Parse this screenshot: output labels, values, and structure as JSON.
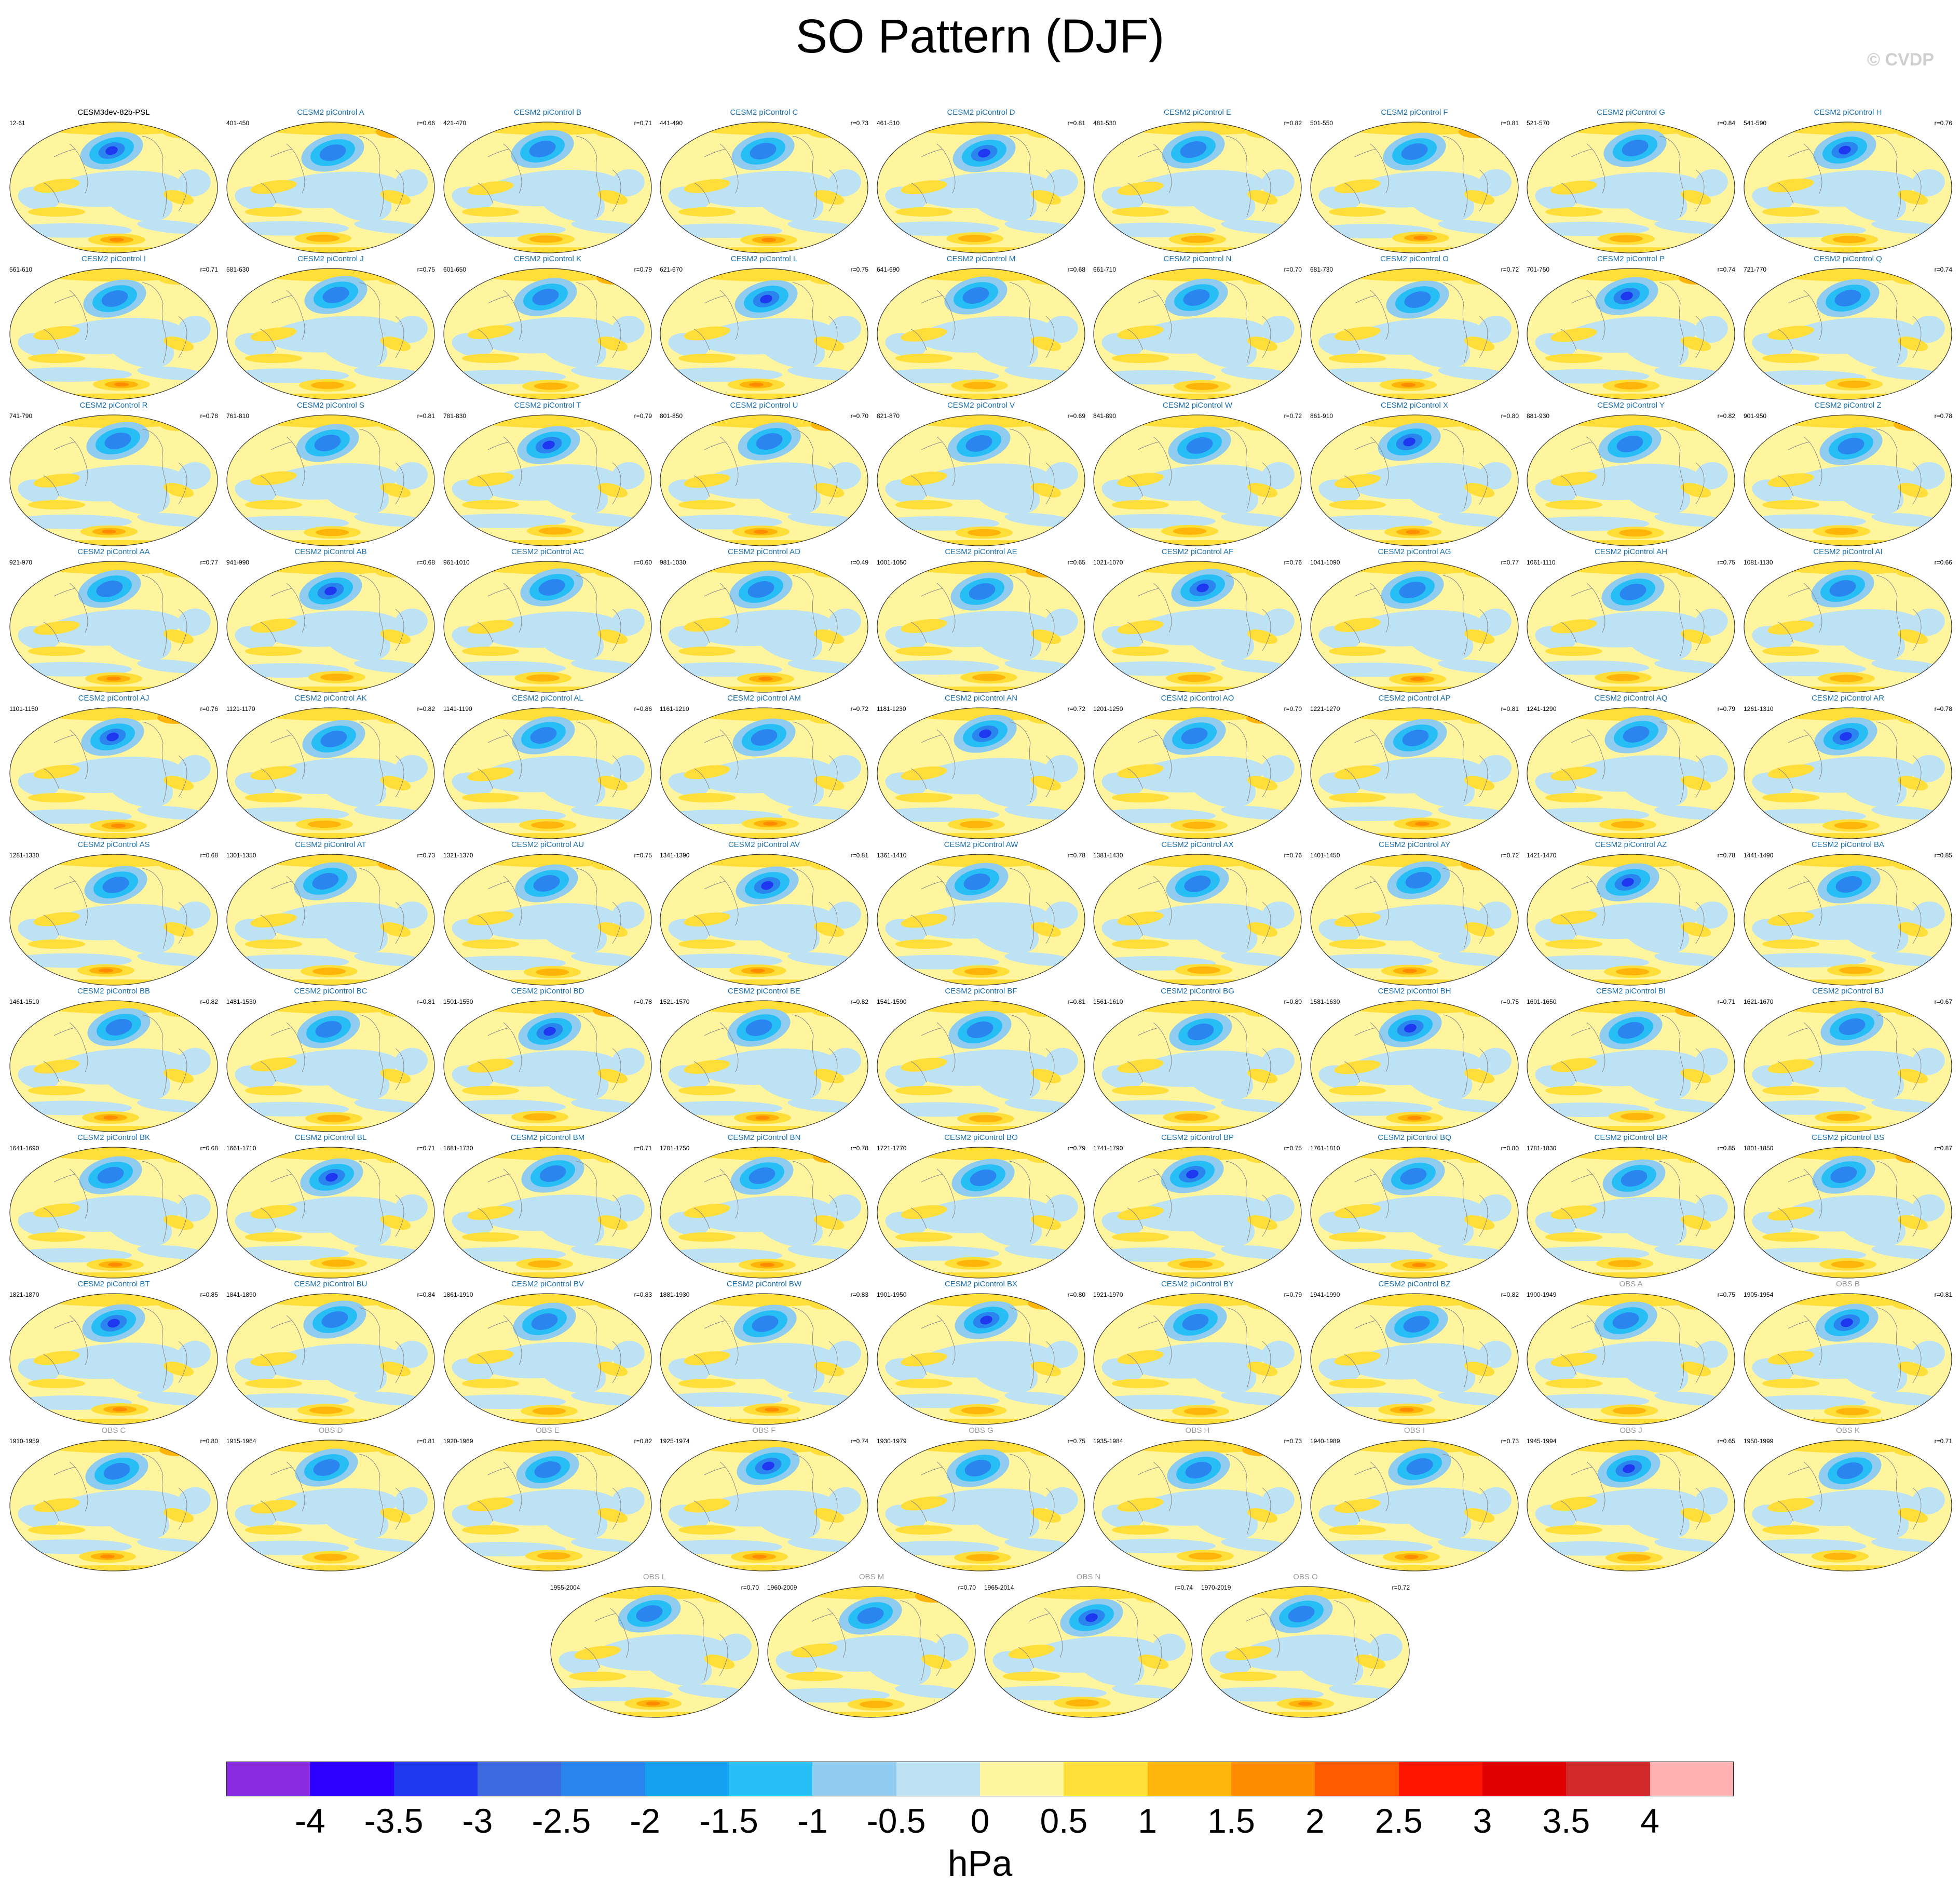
{
  "title": "SO Pattern (DJF)",
  "copyright": "© CVDP",
  "colorbar": {
    "unit": "hPa",
    "ticks": [
      "-4",
      "-3.5",
      "-3",
      "-2.5",
      "-2",
      "-1.5",
      "-1",
      "-0.5",
      "0",
      "0.5",
      "1",
      "1.5",
      "2",
      "2.5",
      "3",
      "3.5",
      "4"
    ],
    "colors": [
      "#8a2be2",
      "#2c00ff",
      "#1e37ef",
      "#3d6ae0",
      "#2a86ee",
      "#14a1f2",
      "#26bef5",
      "#8fccef",
      "#bde2f4",
      "#fff59e",
      "#ffde3a",
      "#ffb40a",
      "#ff8c00",
      "#ff5a00",
      "#ff1600",
      "#e00000",
      "#d22a2a",
      "#ffb0b0"
    ]
  },
  "panels": [
    {
      "title": "CESM3dev-82b-PSL",
      "years": "12-61",
      "corr": "",
      "kind": "base"
    },
    {
      "title": "CESM2 piControl A",
      "years": "401-450",
      "corr": "r=0.66",
      "kind": "model"
    },
    {
      "title": "CESM2 piControl B",
      "years": "421-470",
      "corr": "r=0.71",
      "kind": "model"
    },
    {
      "title": "CESM2 piControl C",
      "years": "441-490",
      "corr": "r=0.73",
      "kind": "model"
    },
    {
      "title": "CESM2 piControl D",
      "years": "461-510",
      "corr": "r=0.81",
      "kind": "model"
    },
    {
      "title": "CESM2 piControl E",
      "years": "481-530",
      "corr": "r=0.82",
      "kind": "model"
    },
    {
      "title": "CESM2 piControl F",
      "years": "501-550",
      "corr": "r=0.81",
      "kind": "model"
    },
    {
      "title": "CESM2 piControl G",
      "years": "521-570",
      "corr": "r=0.84",
      "kind": "model"
    },
    {
      "title": "CESM2 piControl H",
      "years": "541-590",
      "corr": "r=0.76",
      "kind": "model"
    },
    {
      "title": "CESM2 piControl I",
      "years": "561-610",
      "corr": "r=0.71",
      "kind": "model"
    },
    {
      "title": "CESM2 piControl J",
      "years": "581-630",
      "corr": "r=0.75",
      "kind": "model"
    },
    {
      "title": "CESM2 piControl K",
      "years": "601-650",
      "corr": "r=0.79",
      "kind": "model"
    },
    {
      "title": "CESM2 piControl L",
      "years": "621-670",
      "corr": "r=0.75",
      "kind": "model"
    },
    {
      "title": "CESM2 piControl M",
      "years": "641-690",
      "corr": "r=0.68",
      "kind": "model"
    },
    {
      "title": "CESM2 piControl N",
      "years": "661-710",
      "corr": "r=0.70",
      "kind": "model"
    },
    {
      "title": "CESM2 piControl O",
      "years": "681-730",
      "corr": "r=0.72",
      "kind": "model"
    },
    {
      "title": "CESM2 piControl P",
      "years": "701-750",
      "corr": "r=0.74",
      "kind": "model"
    },
    {
      "title": "CESM2 piControl Q",
      "years": "721-770",
      "corr": "r=0.74",
      "kind": "model"
    },
    {
      "title": "CESM2 piControl R",
      "years": "741-790",
      "corr": "r=0.78",
      "kind": "model"
    },
    {
      "title": "CESM2 piControl S",
      "years": "761-810",
      "corr": "r=0.81",
      "kind": "model"
    },
    {
      "title": "CESM2 piControl T",
      "years": "781-830",
      "corr": "r=0.79",
      "kind": "model"
    },
    {
      "title": "CESM2 piControl U",
      "years": "801-850",
      "corr": "r=0.70",
      "kind": "model"
    },
    {
      "title": "CESM2 piControl V",
      "years": "821-870",
      "corr": "r=0.69",
      "kind": "model"
    },
    {
      "title": "CESM2 piControl W",
      "years": "841-890",
      "corr": "r=0.72",
      "kind": "model"
    },
    {
      "title": "CESM2 piControl X",
      "years": "861-910",
      "corr": "r=0.80",
      "kind": "model"
    },
    {
      "title": "CESM2 piControl Y",
      "years": "881-930",
      "corr": "r=0.82",
      "kind": "model"
    },
    {
      "title": "CESM2 piControl Z",
      "years": "901-950",
      "corr": "r=0.78",
      "kind": "model"
    },
    {
      "title": "CESM2 piControl AA",
      "years": "921-970",
      "corr": "r=0.77",
      "kind": "model"
    },
    {
      "title": "CESM2 piControl AB",
      "years": "941-990",
      "corr": "r=0.68",
      "kind": "model"
    },
    {
      "title": "CESM2 piControl AC",
      "years": "961-1010",
      "corr": "r=0.60",
      "kind": "model"
    },
    {
      "title": "CESM2 piControl AD",
      "years": "981-1030",
      "corr": "r=0.49",
      "kind": "model"
    },
    {
      "title": "CESM2 piControl AE",
      "years": "1001-1050",
      "corr": "r=0.65",
      "kind": "model"
    },
    {
      "title": "CESM2 piControl AF",
      "years": "1021-1070",
      "corr": "r=0.76",
      "kind": "model"
    },
    {
      "title": "CESM2 piControl AG",
      "years": "1041-1090",
      "corr": "r=0.77",
      "kind": "model"
    },
    {
      "title": "CESM2 piControl AH",
      "years": "1061-1110",
      "corr": "r=0.75",
      "kind": "model"
    },
    {
      "title": "CESM2 piControl AI",
      "years": "1081-1130",
      "corr": "r=0.66",
      "kind": "model"
    },
    {
      "title": "CESM2 piControl AJ",
      "years": "1101-1150",
      "corr": "r=0.76",
      "kind": "model"
    },
    {
      "title": "CESM2 piControl AK",
      "years": "1121-1170",
      "corr": "r=0.82",
      "kind": "model"
    },
    {
      "title": "CESM2 piControl AL",
      "years": "1141-1190",
      "corr": "r=0.86",
      "kind": "model"
    },
    {
      "title": "CESM2 piControl AM",
      "years": "1161-1210",
      "corr": "r=0.72",
      "kind": "model"
    },
    {
      "title": "CESM2 piControl AN",
      "years": "1181-1230",
      "corr": "r=0.72",
      "kind": "model"
    },
    {
      "title": "CESM2 piControl AO",
      "years": "1201-1250",
      "corr": "r=0.70",
      "kind": "model"
    },
    {
      "title": "CESM2 piControl AP",
      "years": "1221-1270",
      "corr": "r=0.81",
      "kind": "model"
    },
    {
      "title": "CESM2 piControl AQ",
      "years": "1241-1290",
      "corr": "r=0.79",
      "kind": "model"
    },
    {
      "title": "CESM2 piControl AR",
      "years": "1261-1310",
      "corr": "r=0.78",
      "kind": "model"
    },
    {
      "title": "CESM2 piControl AS",
      "years": "1281-1330",
      "corr": "r=0.68",
      "kind": "model"
    },
    {
      "title": "CESM2 piControl AT",
      "years": "1301-1350",
      "corr": "r=0.73",
      "kind": "model"
    },
    {
      "title": "CESM2 piControl AU",
      "years": "1321-1370",
      "corr": "r=0.75",
      "kind": "model"
    },
    {
      "title": "CESM2 piControl AV",
      "years": "1341-1390",
      "corr": "r=0.81",
      "kind": "model"
    },
    {
      "title": "CESM2 piControl AW",
      "years": "1361-1410",
      "corr": "r=0.78",
      "kind": "model"
    },
    {
      "title": "CESM2 piControl AX",
      "years": "1381-1430",
      "corr": "r=0.76",
      "kind": "model"
    },
    {
      "title": "CESM2 piControl AY",
      "years": "1401-1450",
      "corr": "r=0.72",
      "kind": "model"
    },
    {
      "title": "CESM2 piControl AZ",
      "years": "1421-1470",
      "corr": "r=0.78",
      "kind": "model"
    },
    {
      "title": "CESM2 piControl BA",
      "years": "1441-1490",
      "corr": "r=0.85",
      "kind": "model"
    },
    {
      "title": "CESM2 piControl BB",
      "years": "1461-1510",
      "corr": "r=0.82",
      "kind": "model"
    },
    {
      "title": "CESM2 piControl BC",
      "years": "1481-1530",
      "corr": "r=0.81",
      "kind": "model"
    },
    {
      "title": "CESM2 piControl BD",
      "years": "1501-1550",
      "corr": "r=0.78",
      "kind": "model"
    },
    {
      "title": "CESM2 piControl BE",
      "years": "1521-1570",
      "corr": "r=0.82",
      "kind": "model"
    },
    {
      "title": "CESM2 piControl BF",
      "years": "1541-1590",
      "corr": "r=0.81",
      "kind": "model"
    },
    {
      "title": "CESM2 piControl BG",
      "years": "1561-1610",
      "corr": "r=0.80",
      "kind": "model"
    },
    {
      "title": "CESM2 piControl BH",
      "years": "1581-1630",
      "corr": "r=0.75",
      "kind": "model"
    },
    {
      "title": "CESM2 piControl BI",
      "years": "1601-1650",
      "corr": "r=0.71",
      "kind": "model"
    },
    {
      "title": "CESM2 piControl BJ",
      "years": "1621-1670",
      "corr": "r=0.67",
      "kind": "model"
    },
    {
      "title": "CESM2 piControl BK",
      "years": "1641-1690",
      "corr": "r=0.68",
      "kind": "model"
    },
    {
      "title": "CESM2 piControl BL",
      "years": "1661-1710",
      "corr": "r=0.71",
      "kind": "model"
    },
    {
      "title": "CESM2 piControl BM",
      "years": "1681-1730",
      "corr": "r=0.71",
      "kind": "model"
    },
    {
      "title": "CESM2 piControl BN",
      "years": "1701-1750",
      "corr": "r=0.78",
      "kind": "model"
    },
    {
      "title": "CESM2 piControl BO",
      "years": "1721-1770",
      "corr": "r=0.79",
      "kind": "model"
    },
    {
      "title": "CESM2 piControl BP",
      "years": "1741-1790",
      "corr": "r=0.75",
      "kind": "model"
    },
    {
      "title": "CESM2 piControl BQ",
      "years": "1761-1810",
      "corr": "r=0.80",
      "kind": "model"
    },
    {
      "title": "CESM2 piControl BR",
      "years": "1781-1830",
      "corr": "r=0.85",
      "kind": "model"
    },
    {
      "title": "CESM2 piControl BS",
      "years": "1801-1850",
      "corr": "r=0.87",
      "kind": "model"
    },
    {
      "title": "CESM2 piControl BT",
      "years": "1821-1870",
      "corr": "r=0.85",
      "kind": "model"
    },
    {
      "title": "CESM2 piControl BU",
      "years": "1841-1890",
      "corr": "r=0.84",
      "kind": "model"
    },
    {
      "title": "CESM2 piControl BV",
      "years": "1861-1910",
      "corr": "r=0.83",
      "kind": "model"
    },
    {
      "title": "CESM2 piControl BW",
      "years": "1881-1930",
      "corr": "r=0.83",
      "kind": "model"
    },
    {
      "title": "CESM2 piControl BX",
      "years": "1901-1950",
      "corr": "r=0.80",
      "kind": "model"
    },
    {
      "title": "CESM2 piControl BY",
      "years": "1921-1970",
      "corr": "r=0.79",
      "kind": "model"
    },
    {
      "title": "CESM2 piControl BZ",
      "years": "1941-1990",
      "corr": "r=0.82",
      "kind": "model"
    },
    {
      "title": "OBS A",
      "years": "1900-1949",
      "corr": "r=0.75",
      "kind": "obs"
    },
    {
      "title": "OBS B",
      "years": "1905-1954",
      "corr": "r=0.81",
      "kind": "obs"
    },
    {
      "title": "OBS C",
      "years": "1910-1959",
      "corr": "r=0.80",
      "kind": "obs"
    },
    {
      "title": "OBS D",
      "years": "1915-1964",
      "corr": "r=0.81",
      "kind": "obs"
    },
    {
      "title": "OBS E",
      "years": "1920-1969",
      "corr": "r=0.82",
      "kind": "obs"
    },
    {
      "title": "OBS F",
      "years": "1925-1974",
      "corr": "r=0.74",
      "kind": "obs"
    },
    {
      "title": "OBS G",
      "years": "1930-1979",
      "corr": "r=0.75",
      "kind": "obs"
    },
    {
      "title": "OBS H",
      "years": "1935-1984",
      "corr": "r=0.73",
      "kind": "obs"
    },
    {
      "title": "OBS I",
      "years": "1940-1989",
      "corr": "r=0.73",
      "kind": "obs"
    },
    {
      "title": "OBS J",
      "years": "1945-1994",
      "corr": "r=0.65",
      "kind": "obs"
    },
    {
      "title": "OBS K",
      "years": "1950-1999",
      "corr": "r=0.71",
      "kind": "obs"
    },
    {
      "title": "OBS L",
      "years": "1955-2004",
      "corr": "r=0.70",
      "kind": "obs"
    },
    {
      "title": "OBS M",
      "years": "1960-2009",
      "corr": "r=0.70",
      "kind": "obs"
    },
    {
      "title": "OBS N",
      "years": "1965-2014",
      "corr": "r=0.74",
      "kind": "obs"
    },
    {
      "title": "OBS O",
      "years": "1970-2019",
      "corr": "r=0.72",
      "kind": "obs"
    }
  ]
}
